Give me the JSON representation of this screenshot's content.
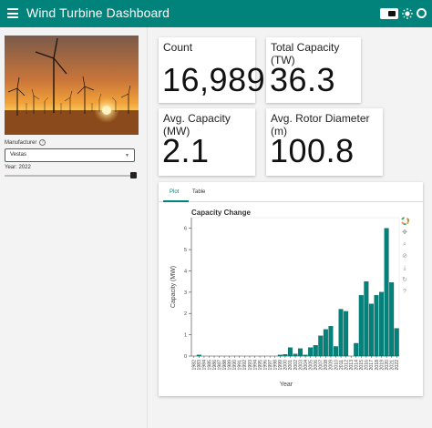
{
  "header": {
    "title": "Wind Turbine Dashboard",
    "background": "#01827b"
  },
  "sidebar": {
    "manufacturer_label": "Manufacturer",
    "manufacturer_value": "Vestas",
    "year_label": "Year: 2022",
    "year_slider_level": 1.0
  },
  "cards": {
    "count": {
      "title": "Count",
      "value": "16,989"
    },
    "total_capacity": {
      "title": "Total Capacity (TW)",
      "value": "36.3"
    },
    "avg_capacity": {
      "title": "Avg. Capacity (MW)",
      "value": "2.1"
    },
    "avg_rotor": {
      "title": "Avg. Rotor Diameter (m)",
      "value": "100.8"
    }
  },
  "tabs": [
    {
      "label": "Plot",
      "active": true
    },
    {
      "label": "Table",
      "active": false
    }
  ],
  "chart_data": {
    "type": "bar",
    "title": "Capacity Change",
    "xlabel": "Year",
    "ylabel": "Capacity (MW)",
    "ylim": [
      0,
      6.5
    ],
    "yticks": [
      0,
      1,
      2,
      3,
      4,
      5,
      6
    ],
    "bar_color": "#01827b",
    "categories": [
      "1982",
      "1983",
      "1984",
      "1985",
      "1986",
      "1987",
      "1988",
      "1989",
      "1990",
      "1991",
      "1992",
      "1993",
      "1994",
      "1995",
      "1996",
      "1997",
      "1998",
      "1999",
      "2000",
      "2001",
      "2002",
      "2003",
      "2004",
      "2005",
      "2006",
      "2007",
      "2008",
      "2009",
      "2010",
      "2011",
      "2012",
      "2013",
      "2014",
      "2015",
      "2016",
      "2017",
      "2018",
      "2019",
      "2020",
      "2021",
      "2022"
    ],
    "xtick_labels": [
      "1982",
      "1983",
      "1984",
      "1985",
      "1986",
      "1987",
      "1988",
      "1989",
      "1990",
      "1991",
      "1992",
      "1993",
      "1994",
      "1995",
      "1996",
      "1997",
      "1998",
      "1999",
      "2000",
      "2001",
      "2002",
      "2003",
      "2004",
      "2005",
      "2006",
      "2007",
      "2008",
      "2009",
      "2010",
      "2011",
      "2012",
      "2013",
      "2014",
      "2015",
      "2016",
      "2017",
      "2018",
      "2019",
      "2020",
      "2021",
      "2022"
    ],
    "values": [
      0.0,
      0.05,
      0.0,
      0.0,
      0.0,
      0.0,
      0.0,
      0.0,
      0.0,
      0.0,
      0.0,
      0.0,
      0.0,
      0.0,
      0.0,
      0.0,
      0.0,
      0.05,
      0.08,
      0.4,
      0.1,
      0.35,
      0.05,
      0.4,
      0.5,
      0.95,
      1.25,
      1.4,
      0.45,
      2.2,
      2.1,
      0.0,
      0.6,
      2.85,
      3.5,
      2.45,
      2.85,
      3.0,
      6.0,
      3.45,
      1.3
    ]
  },
  "toolbar_icons": [
    "bokeh-logo-icon",
    "pan-icon",
    "zoom-icon",
    "lasso-icon",
    "save-icon",
    "reset-icon",
    "help-icon"
  ]
}
